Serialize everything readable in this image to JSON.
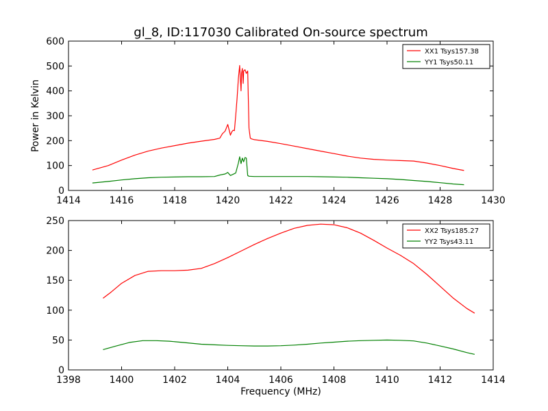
{
  "chart_data": [
    {
      "type": "line",
      "title": "gl_8, ID:117030 Calibrated On-source spectrum",
      "xlabel": "",
      "ylabel": "Power in Kelvin",
      "xlim": [
        1414,
        1430
      ],
      "ylim": [
        0,
        600
      ],
      "xticks": [
        1414,
        1416,
        1418,
        1420,
        1422,
        1424,
        1426,
        1428,
        1430
      ],
      "yticks": [
        0,
        100,
        200,
        300,
        400,
        500,
        600
      ],
      "grid": false,
      "legend_position": "top-right",
      "series": [
        {
          "name": "XX1 Tsys157.38",
          "color": "#ff0000",
          "x": [
            1414.9,
            1415.5,
            1416.0,
            1416.5,
            1417.0,
            1417.5,
            1418.0,
            1418.5,
            1419.0,
            1419.5,
            1419.7,
            1419.8,
            1419.9,
            1420.0,
            1420.1,
            1420.15,
            1420.2,
            1420.25,
            1420.3,
            1420.35,
            1420.4,
            1420.45,
            1420.5,
            1420.52,
            1420.55,
            1420.58,
            1420.6,
            1420.65,
            1420.7,
            1420.75,
            1420.8,
            1420.85,
            1420.9,
            1421.0,
            1421.5,
            1422.0,
            1422.5,
            1423.0,
            1423.5,
            1424.0,
            1424.5,
            1425.0,
            1425.5,
            1426.0,
            1426.5,
            1427.0,
            1427.5,
            1428.0,
            1428.5,
            1428.9
          ],
          "y": [
            82,
            100,
            122,
            142,
            158,
            170,
            180,
            190,
            198,
            205,
            210,
            228,
            238,
            265,
            222,
            235,
            242,
            240,
            300,
            370,
            450,
            502,
            400,
            470,
            490,
            430,
            480,
            485,
            470,
            480,
            250,
            210,
            207,
            204,
            197,
            188,
            178,
            168,
            158,
            148,
            138,
            130,
            125,
            122,
            120,
            118,
            110,
            100,
            88,
            80
          ]
        },
        {
          "name": "YY1 Tsys50.11",
          "color": "#008000",
          "x": [
            1414.9,
            1415.5,
            1416.0,
            1416.5,
            1417.0,
            1417.5,
            1418.0,
            1418.5,
            1419.0,
            1419.5,
            1419.7,
            1419.9,
            1420.0,
            1420.1,
            1420.2,
            1420.3,
            1420.4,
            1420.45,
            1420.5,
            1420.55,
            1420.6,
            1420.65,
            1420.7,
            1420.75,
            1420.8,
            1421.0,
            1421.5,
            1422.0,
            1422.5,
            1423.0,
            1423.5,
            1424.0,
            1424.5,
            1425.0,
            1425.5,
            1426.0,
            1426.5,
            1427.0,
            1427.5,
            1428.0,
            1428.5,
            1428.9
          ],
          "y": [
            30,
            36,
            42,
            47,
            51,
            53,
            54,
            55,
            55,
            56,
            62,
            66,
            72,
            60,
            65,
            70,
            110,
            135,
            108,
            130,
            115,
            132,
            130,
            60,
            57,
            56,
            56,
            56,
            56,
            56,
            55,
            54,
            53,
            51,
            49,
            47,
            44,
            40,
            36,
            31,
            26,
            23
          ]
        }
      ]
    },
    {
      "type": "line",
      "title": "",
      "xlabel": "Frequency (MHz)",
      "ylabel": "",
      "xlim": [
        1398,
        1414
      ],
      "ylim": [
        0,
        250
      ],
      "xticks": [
        1398,
        1400,
        1402,
        1404,
        1406,
        1408,
        1410,
        1412,
        1414
      ],
      "yticks": [
        0,
        50,
        100,
        150,
        200,
        250
      ],
      "grid": false,
      "legend_position": "top-right",
      "series": [
        {
          "name": "XX2 Tsys185.27",
          "color": "#ff0000",
          "x": [
            1399.3,
            1399.6,
            1400.0,
            1400.5,
            1401.0,
            1401.5,
            1402.0,
            1402.5,
            1403.0,
            1403.5,
            1404.0,
            1404.5,
            1405.0,
            1405.5,
            1406.0,
            1406.5,
            1407.0,
            1407.5,
            1408.0,
            1408.5,
            1409.0,
            1409.5,
            1410.0,
            1410.5,
            1411.0,
            1411.5,
            1412.0,
            1412.5,
            1413.0,
            1413.3
          ],
          "y": [
            120,
            130,
            145,
            158,
            165,
            166,
            166,
            167,
            170,
            178,
            188,
            199,
            210,
            220,
            229,
            237,
            242,
            244,
            243,
            238,
            229,
            217,
            204,
            192,
            178,
            160,
            140,
            120,
            103,
            95
          ]
        },
        {
          "name": "YY2 Tsys43.11",
          "color": "#008000",
          "x": [
            1399.3,
            1399.8,
            1400.3,
            1400.8,
            1401.3,
            1401.8,
            1402.3,
            1403.0,
            1403.5,
            1404.0,
            1404.5,
            1405.0,
            1405.5,
            1406.0,
            1406.5,
            1407.0,
            1407.5,
            1408.0,
            1408.5,
            1409.0,
            1409.5,
            1410.0,
            1410.5,
            1411.0,
            1411.5,
            1412.0,
            1412.5,
            1413.0,
            1413.3
          ],
          "y": [
            34,
            40,
            46,
            49,
            49,
            48,
            46,
            43,
            42,
            41,
            40.5,
            40,
            40,
            40.5,
            41.5,
            43,
            45,
            46.5,
            48,
            49,
            49.5,
            50,
            49.5,
            48.5,
            45,
            40,
            35,
            29,
            26
          ]
        }
      ]
    }
  ]
}
